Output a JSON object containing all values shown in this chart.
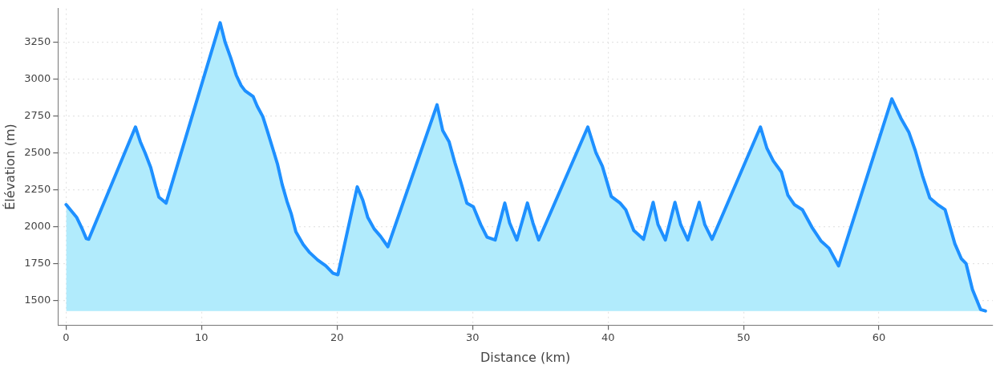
{
  "chart_data": {
    "type": "area",
    "xlabel": "Distance (km)",
    "ylabel": "Élévation (m)",
    "x": [
      0,
      0.77,
      1.19,
      1.49,
      1.67,
      5.12,
      5.48,
      5.83,
      6.25,
      6.61,
      6.85,
      7.38,
      11.37,
      11.73,
      12.14,
      12.56,
      12.92,
      13.21,
      13.81,
      14.11,
      14.52,
      14.88,
      15.3,
      15.6,
      15.95,
      16.31,
      16.61,
      16.96,
      17.5,
      17.98,
      18.57,
      19.17,
      19.7,
      20.06,
      21.49,
      21.9,
      22.26,
      22.74,
      23.21,
      23.75,
      27.38,
      27.8,
      28.27,
      28.69,
      29.11,
      29.58,
      30.06,
      30.6,
      31.07,
      31.67,
      32.38,
      32.74,
      33.27,
      34.05,
      34.46,
      34.88,
      38.51,
      39.11,
      39.58,
      40.24,
      40.89,
      41.31,
      41.9,
      42.62,
      43.33,
      43.69,
      44.23,
      44.94,
      45.36,
      45.89,
      46.73,
      47.14,
      47.68,
      51.25,
      51.73,
      52.2,
      52.8,
      53.27,
      53.75,
      54.35,
      55.06,
      55.71,
      56.31,
      57.02,
      60.95,
      61.61,
      62.2,
      62.68,
      63.21,
      63.75,
      64.4,
      64.88,
      65.24,
      65.6,
      66.07,
      66.43,
      66.9,
      67.5,
      67.86
    ],
    "series": [
      {
        "color": "#1e90ff",
        "values": [
          2150,
          2065,
          1985,
          1920,
          1915,
          2675,
          2575,
          2500,
          2400,
          2275,
          2200,
          2160,
          3380,
          3250,
          3145,
          3025,
          2955,
          2920,
          2880,
          2815,
          2745,
          2640,
          2515,
          2425,
          2285,
          2170,
          2090,
          1965,
          1880,
          1825,
          1775,
          1735,
          1685,
          1675,
          2270,
          2180,
          2065,
          1985,
          1935,
          1865,
          2825,
          2650,
          2575,
          2435,
          2310,
          2160,
          2135,
          2015,
          1930,
          1910,
          2160,
          2025,
          1910,
          2160,
          2025,
          1910,
          2675,
          2500,
          2410,
          2205,
          2160,
          2115,
          1975,
          1915,
          2165,
          2015,
          1910,
          2165,
          2015,
          1910,
          2165,
          2015,
          1915,
          2675,
          2530,
          2445,
          2370,
          2215,
          2150,
          2115,
          1995,
          1905,
          1855,
          1735,
          2865,
          2735,
          2640,
          2515,
          2345,
          2195,
          2145,
          2115,
          2000,
          1885,
          1785,
          1750,
          1575,
          1440,
          1430
        ]
      }
    ],
    "xlim": [
      -0.6,
      68.4
    ],
    "ylim": [
      1335,
      3475
    ],
    "xticks": [
      0,
      10,
      20,
      30,
      40,
      50,
      60
    ],
    "yticks": [
      1500,
      1750,
      2000,
      2250,
      2500,
      2750,
      3000,
      3250
    ],
    "grid": true,
    "legend": false,
    "marker": "none",
    "line_style": "solid"
  }
}
